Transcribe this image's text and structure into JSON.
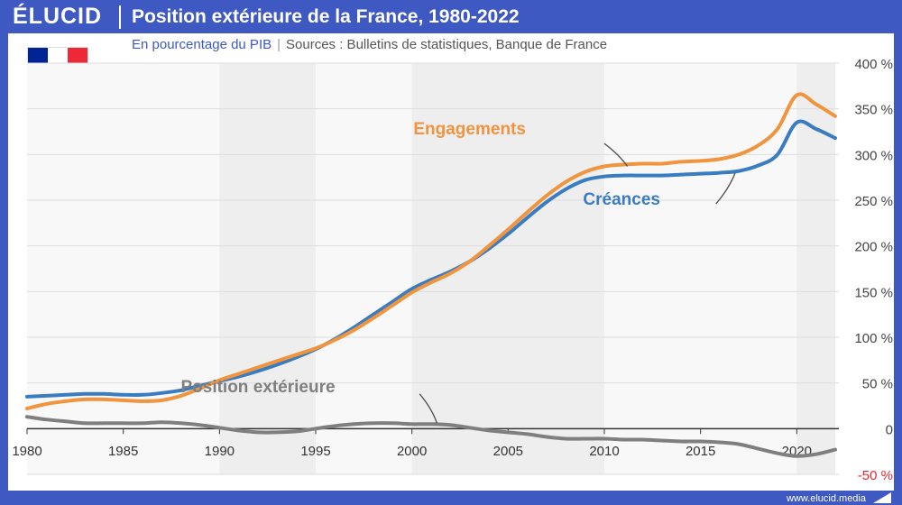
{
  "header": {
    "brand": "ÉLUCID",
    "title": "Position extérieure de la France, 1980-2022"
  },
  "subtitle": {
    "unit": "En pourcentage du PIB",
    "sources": "Sources : Bulletins de statistiques, Banque de France"
  },
  "footer": {
    "site": "www.elucid.media"
  },
  "flag": {
    "colors": [
      "#002395",
      "#ffffff",
      "#ed2939"
    ]
  },
  "chart_data": {
    "type": "line",
    "title": "Position extérieure de la France, 1980-2022",
    "xlim": [
      1980,
      2022
    ],
    "ylim": [
      -50,
      400
    ],
    "x_ticks": [
      1980,
      1985,
      1990,
      1995,
      2000,
      2005,
      2010,
      2015,
      2020
    ],
    "y_ticks": [
      {
        "value": 400,
        "label": "400 %"
      },
      {
        "value": 350,
        "label": "350 %"
      },
      {
        "value": 300,
        "label": "300 %"
      },
      {
        "value": 250,
        "label": "250 %"
      },
      {
        "value": 200,
        "label": "200 %"
      },
      {
        "value": 150,
        "label": "150 %"
      },
      {
        "value": 100,
        "label": "100 %"
      },
      {
        "value": 50,
        "label": "50 %"
      },
      {
        "value": 0,
        "label": "0"
      },
      {
        "value": -50,
        "label": "-50 %"
      }
    ],
    "shaded_bands": [
      [
        1990,
        1995
      ],
      [
        2000,
        2010
      ],
      [
        2020,
        2022
      ]
    ],
    "series": [
      {
        "name": "Engagements",
        "color": "#f0943e",
        "label_at": [
          2003.0,
          322
        ],
        "points": [
          [
            1980,
            22
          ],
          [
            1981,
            27
          ],
          [
            1982,
            30
          ],
          [
            1983,
            32
          ],
          [
            1984,
            32
          ],
          [
            1985,
            31
          ],
          [
            1986,
            30
          ],
          [
            1987,
            31
          ],
          [
            1988,
            36
          ],
          [
            1989,
            44
          ],
          [
            1990,
            53
          ],
          [
            1991,
            60
          ],
          [
            1992,
            67
          ],
          [
            1993,
            74
          ],
          [
            1994,
            81
          ],
          [
            1995,
            88
          ],
          [
            1996,
            97
          ],
          [
            1997,
            108
          ],
          [
            1998,
            121
          ],
          [
            1999,
            135
          ],
          [
            2000,
            149
          ],
          [
            2001,
            160
          ],
          [
            2002,
            170
          ],
          [
            2003,
            183
          ],
          [
            2004,
            200
          ],
          [
            2005,
            218
          ],
          [
            2006,
            237
          ],
          [
            2007,
            255
          ],
          [
            2008,
            270
          ],
          [
            2009,
            281
          ],
          [
            2010,
            287
          ],
          [
            2011,
            289
          ],
          [
            2012,
            290
          ],
          [
            2013,
            290
          ],
          [
            2014,
            292
          ],
          [
            2015,
            293
          ],
          [
            2016,
            295
          ],
          [
            2017,
            300
          ],
          [
            2018,
            310
          ],
          [
            2019,
            328
          ],
          [
            2020,
            365
          ],
          [
            2021,
            355
          ],
          [
            2022,
            342
          ]
        ]
      },
      {
        "name": "Créances",
        "color": "#3a7cc1",
        "label_at": [
          2010.9,
          245
        ],
        "points": [
          [
            1980,
            35
          ],
          [
            1981,
            36
          ],
          [
            1982,
            37
          ],
          [
            1983,
            38
          ],
          [
            1984,
            38
          ],
          [
            1985,
            37
          ],
          [
            1986,
            37
          ],
          [
            1987,
            39
          ],
          [
            1988,
            42
          ],
          [
            1989,
            47
          ],
          [
            1990,
            52
          ],
          [
            1991,
            57
          ],
          [
            1992,
            63
          ],
          [
            1993,
            70
          ],
          [
            1994,
            78
          ],
          [
            1995,
            87
          ],
          [
            1996,
            98
          ],
          [
            1997,
            111
          ],
          [
            1998,
            125
          ],
          [
            1999,
            139
          ],
          [
            2000,
            153
          ],
          [
            2001,
            163
          ],
          [
            2002,
            172
          ],
          [
            2003,
            183
          ],
          [
            2004,
            197
          ],
          [
            2005,
            213
          ],
          [
            2006,
            231
          ],
          [
            2007,
            248
          ],
          [
            2008,
            262
          ],
          [
            2009,
            272
          ],
          [
            2010,
            276
          ],
          [
            2011,
            277
          ],
          [
            2012,
            277
          ],
          [
            2013,
            277
          ],
          [
            2014,
            278
          ],
          [
            2015,
            279
          ],
          [
            2016,
            280
          ],
          [
            2017,
            282
          ],
          [
            2018,
            288
          ],
          [
            2019,
            300
          ],
          [
            2020,
            335
          ],
          [
            2021,
            328
          ],
          [
            2022,
            318
          ]
        ]
      },
      {
        "name": "Position extérieure",
        "color": "#7f7f7f",
        "label_at": [
          1992.0,
          40
        ],
        "points": [
          [
            1980,
            13
          ],
          [
            1981,
            10
          ],
          [
            1982,
            8
          ],
          [
            1983,
            6
          ],
          [
            1984,
            6
          ],
          [
            1985,
            6
          ],
          [
            1986,
            6
          ],
          [
            1987,
            7
          ],
          [
            1988,
            6
          ],
          [
            1989,
            4
          ],
          [
            1990,
            1
          ],
          [
            1991,
            -2
          ],
          [
            1992,
            -4
          ],
          [
            1993,
            -4
          ],
          [
            1994,
            -3
          ],
          [
            1995,
            0
          ],
          [
            1996,
            3
          ],
          [
            1997,
            5
          ],
          [
            1998,
            6
          ],
          [
            1999,
            6
          ],
          [
            2000,
            5
          ],
          [
            2001,
            5
          ],
          [
            2002,
            4
          ],
          [
            2003,
            1
          ],
          [
            2004,
            -2
          ],
          [
            2005,
            -4
          ],
          [
            2006,
            -6
          ],
          [
            2007,
            -9
          ],
          [
            2008,
            -11
          ],
          [
            2009,
            -11
          ],
          [
            2010,
            -11
          ],
          [
            2011,
            -12
          ],
          [
            2012,
            -12
          ],
          [
            2013,
            -13
          ],
          [
            2014,
            -14
          ],
          [
            2015,
            -14
          ],
          [
            2016,
            -15
          ],
          [
            2017,
            -17
          ],
          [
            2018,
            -22
          ],
          [
            2019,
            -27
          ],
          [
            2020,
            -30
          ],
          [
            2021,
            -28
          ],
          [
            2022,
            -23
          ]
        ]
      }
    ],
    "callouts": [
      {
        "series": "Engagements",
        "from": [
          2010.0,
          312
        ],
        "to": [
          2011.2,
          287
        ]
      },
      {
        "series": "Créances",
        "from": [
          2016.8,
          280
        ],
        "to": [
          2015.8,
          246
        ]
      },
      {
        "series": "Position extérieure",
        "from": [
          2000.4,
          38
        ],
        "to": [
          2001.3,
          6
        ]
      }
    ]
  }
}
